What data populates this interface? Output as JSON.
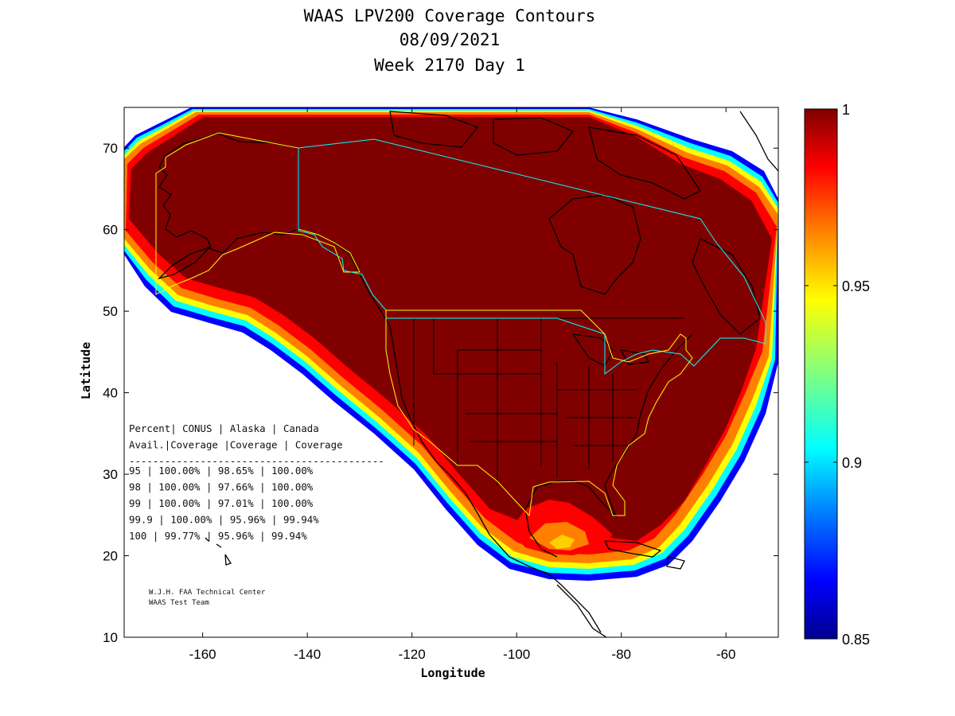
{
  "title": {
    "line1": "WAAS LPV200 Coverage Contours",
    "line2": "08/09/2021",
    "line3": "Week 2170 Day 1"
  },
  "axes": {
    "xlabel": "Longitude",
    "ylabel": "Latitude",
    "xlim": [
      -175,
      -50
    ],
    "ylim": [
      10,
      75
    ],
    "xticks": [
      -160,
      -140,
      -120,
      -100,
      -80,
      -60
    ],
    "yticks": [
      10,
      20,
      30,
      40,
      50,
      60,
      70
    ]
  },
  "colorbar": {
    "min": 0.85,
    "max": 1,
    "ticks": [
      "1",
      "0.95",
      "0.9",
      "0.85"
    ],
    "tick_values": [
      1,
      0.95,
      0.9,
      0.85
    ],
    "colormap": [
      "#00008f",
      "#0000ff",
      "#0080ff",
      "#00ffff",
      "#80ff80",
      "#ffff00",
      "#ff8000",
      "#ff0000",
      "#800000"
    ]
  },
  "stats_table": {
    "rows": [
      "Percent| CONUS   | Alaska  | Canada",
      " Avail.|Coverage |Coverage | Coverage",
      "-------------------------------------------",
      "  95   | 100.00%  | 98.65% | 100.00%",
      "  98   | 100.00%  | 97.66% | 100.00%",
      "  99   | 100.00%  | 97.01% | 100.00%",
      "99.9   | 100.00%  | 95.96% | 99.94%",
      " 100   | 99.77%  | 95.96% | 99.94%"
    ]
  },
  "credit": {
    "line1": "W.J.H. FAA Technical Center",
    "line2": "WAAS Test Team"
  },
  "colors": {
    "full_coverage": "#800000",
    "service_volume_conus": "#ffff00",
    "service_volume_canada": "#00ffff",
    "coastline": "#000000"
  },
  "chart_data": {
    "type": "heatmap",
    "quantity": "LPV200 availability",
    "value_range": [
      0.85,
      1
    ],
    "regions": [
      {
        "name": "CONUS",
        "availability_95": "100.00%",
        "availability_98": "100.00%",
        "availability_99": "100.00%",
        "availability_99_9": "100.00%",
        "availability_100": "99.77%"
      },
      {
        "name": "Alaska",
        "availability_95": "98.65%",
        "availability_98": "97.66%",
        "availability_99": "97.01%",
        "availability_99_9": "95.96%",
        "availability_100": "95.96%"
      },
      {
        "name": "Canada",
        "availability_95": "100.00%",
        "availability_98": "100.00%",
        "availability_99": "100.00%",
        "availability_99_9": "99.94%",
        "availability_100": "99.94%"
      }
    ]
  }
}
